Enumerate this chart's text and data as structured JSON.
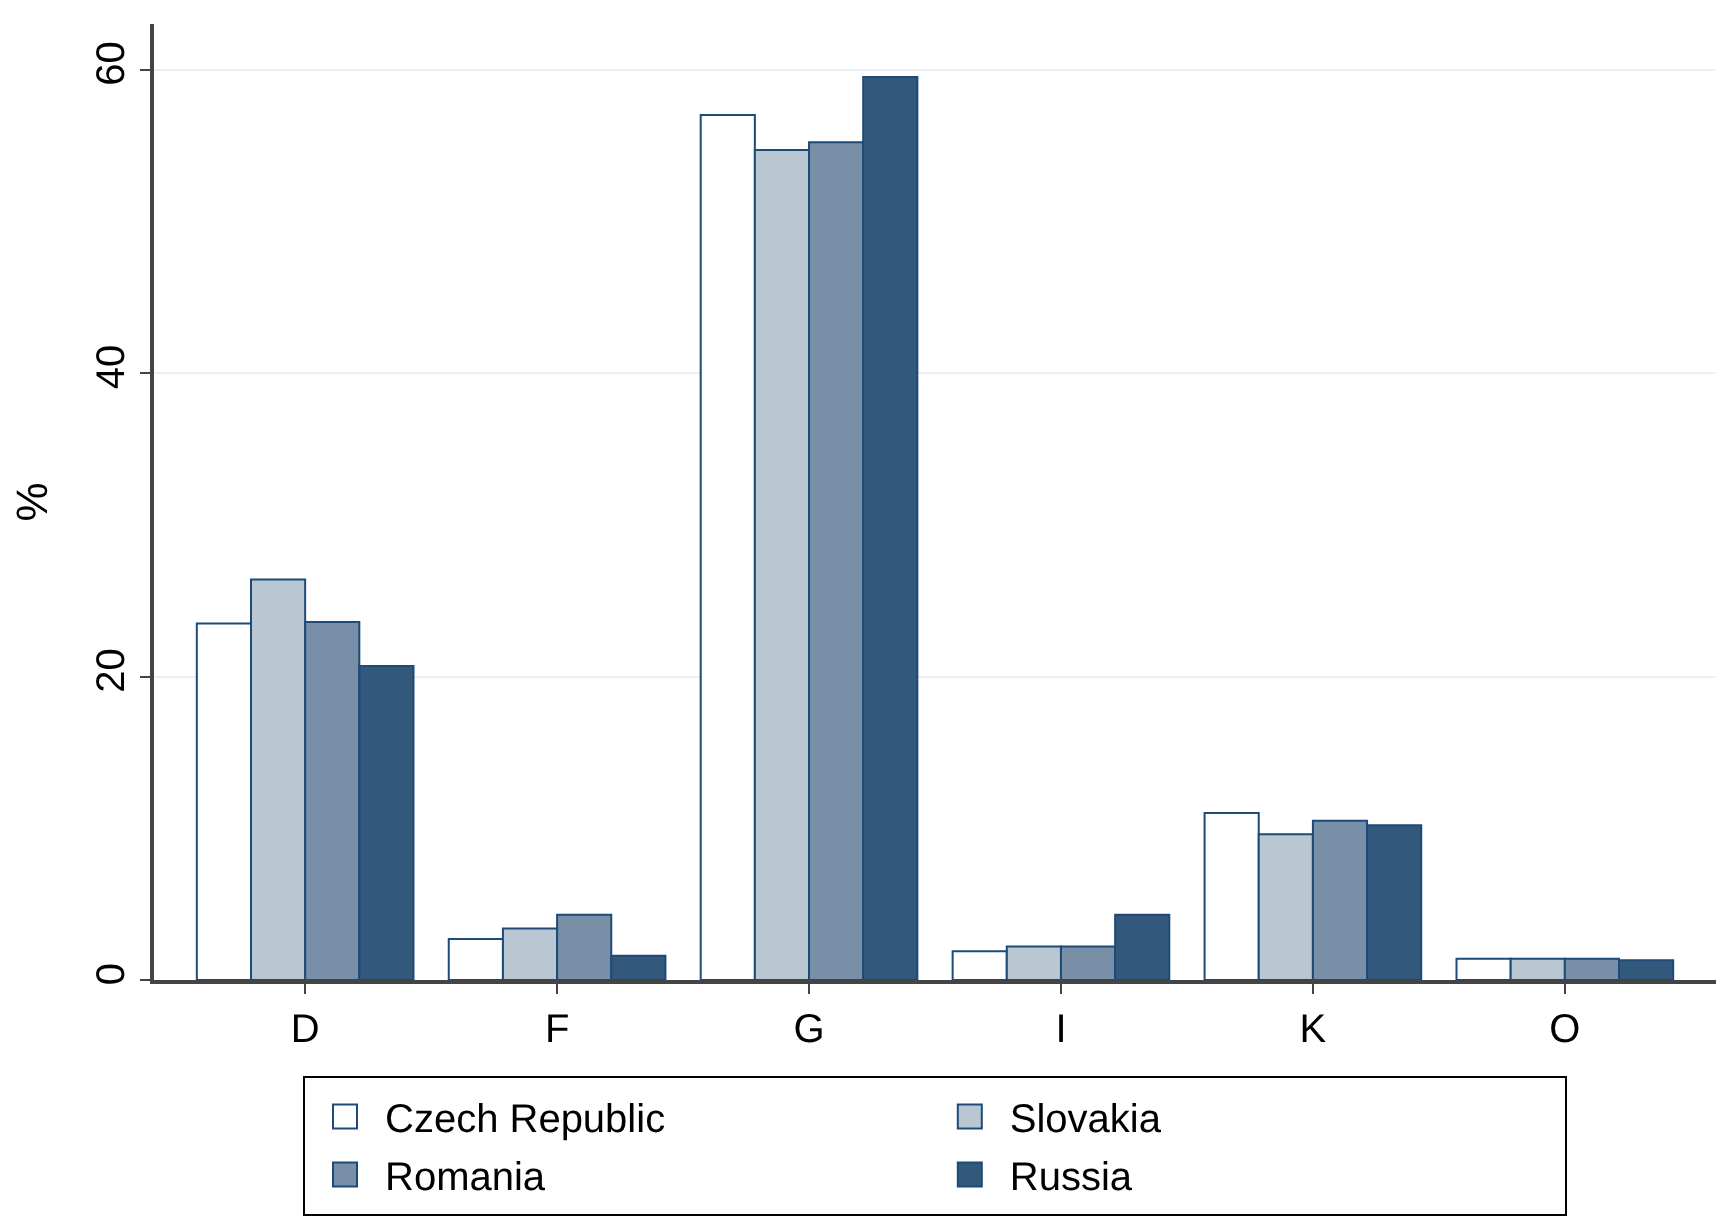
{
  "chart_data": {
    "type": "bar",
    "ylabel": "%",
    "categories": [
      "D",
      "F",
      "G",
      "I",
      "K",
      "O"
    ],
    "series": [
      {
        "name": "Czech Republic",
        "color": "#ffffff",
        "values": [
          23.5,
          2.7,
          57.0,
          1.9,
          11.0,
          1.4
        ]
      },
      {
        "name": "Slovakia",
        "color": "#b9c7d3",
        "values": [
          26.4,
          3.4,
          54.7,
          2.2,
          9.6,
          1.4
        ]
      },
      {
        "name": "Romania",
        "color": "#7790a8",
        "values": [
          23.6,
          4.3,
          55.2,
          2.2,
          10.5,
          1.4
        ]
      },
      {
        "name": "Russia",
        "color": "#32587b",
        "values": [
          20.7,
          1.6,
          59.5,
          4.3,
          10.2,
          1.3
        ]
      }
    ],
    "ylim": [
      0,
      63
    ],
    "yticks": [
      0,
      20,
      40,
      60
    ],
    "grid": "y",
    "legend": "bottom"
  }
}
